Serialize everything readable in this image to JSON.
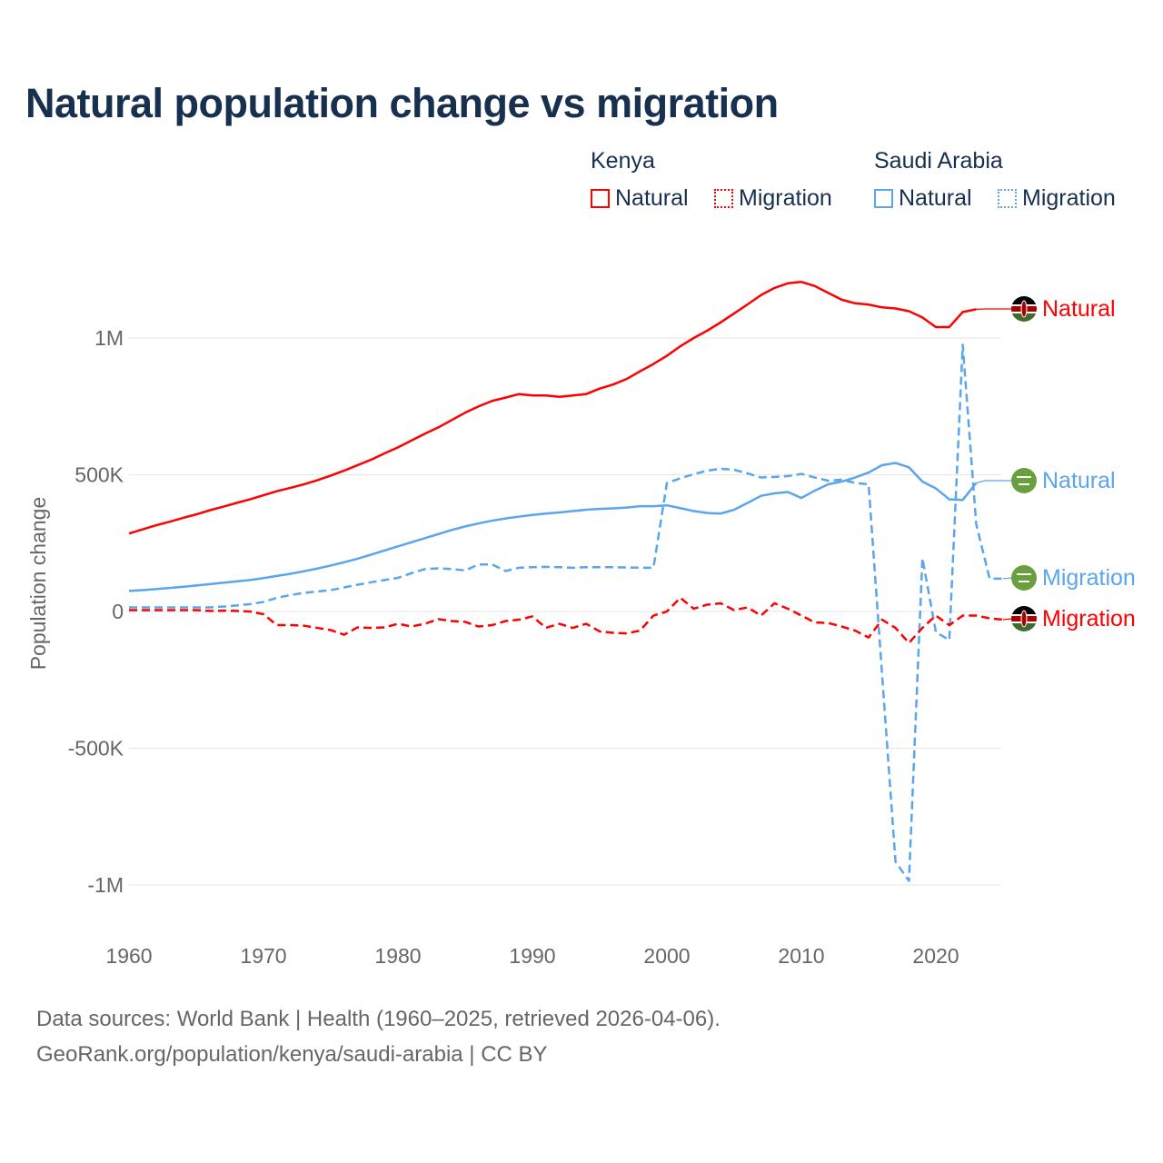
{
  "title": "Natural population change vs migration",
  "legend": {
    "groups": [
      {
        "name": "Kenya",
        "items": [
          {
            "label": "Natural",
            "style": "solid",
            "color": "#ff0000"
          },
          {
            "label": "Migration",
            "style": "dotted",
            "color": "#ff0000"
          }
        ]
      },
      {
        "name": "Saudi Arabia",
        "items": [
          {
            "label": "Natural",
            "style": "solid",
            "color": "#5aa5ec"
          },
          {
            "label": "Migration",
            "style": "dotted",
            "color": "#5aa5ec"
          }
        ]
      }
    ]
  },
  "footer": {
    "line1": "Data sources: World Bank | Health (1960–2025, retrieved 2026-04-06).",
    "line2": "GeoRank.org/population/kenya/saudi-arabia | CC BY"
  },
  "chart_data": {
    "type": "line",
    "title": "Natural population change vs migration",
    "xlabel": "",
    "ylabel": "Population change",
    "xlim": [
      1960,
      2025
    ],
    "ylim": [
      -1100000,
      1300000
    ],
    "x_ticks": [
      1960,
      1970,
      1980,
      1990,
      2000,
      2010,
      2020
    ],
    "y_ticks": [
      {
        "value": -1000000,
        "label": "-1M"
      },
      {
        "value": -500000,
        "label": "-500K"
      },
      {
        "value": 0,
        "label": "0"
      },
      {
        "value": 500000,
        "label": "500K"
      },
      {
        "value": 1000000,
        "label": "1M"
      }
    ],
    "start_year": 1960,
    "series": [
      {
        "name": "Kenya Natural",
        "label": "Natural",
        "color": "#ff0000",
        "dashed": false,
        "flag": "kenya",
        "values_k": [
          285,
          300,
          315,
          328,
          342,
          355,
          370,
          383,
          397,
          410,
          425,
          440,
          452,
          465,
          480,
          497,
          515,
          535,
          555,
          578,
          600,
          625,
          650,
          673,
          700,
          727,
          750,
          770,
          782,
          795,
          790,
          790,
          785,
          790,
          795,
          815,
          830,
          850,
          878,
          905,
          935,
          970,
          1000,
          1027,
          1057,
          1090,
          1123,
          1157,
          1183,
          1200,
          1205,
          1190,
          1165,
          1140,
          1127,
          1122,
          1112,
          1108,
          1098,
          1075,
          1040,
          1040,
          1095,
          1105
        ]
      },
      {
        "name": "Saudi Arabia Natural",
        "label": "Natural",
        "color": "#5aa5ec",
        "dashed": false,
        "flag": "saudi",
        "values_k": [
          75,
          78,
          82,
          86,
          90,
          95,
          100,
          105,
          110,
          115,
          122,
          130,
          138,
          147,
          157,
          168,
          180,
          193,
          208,
          223,
          238,
          253,
          268,
          283,
          298,
          311,
          322,
          332,
          340,
          347,
          353,
          358,
          362,
          367,
          372,
          375,
          377,
          380,
          385,
          385,
          388,
          378,
          367,
          360,
          358,
          372,
          397,
          423,
          432,
          437,
          415,
          442,
          465,
          475,
          490,
          508,
          535,
          543,
          527,
          475,
          450,
          410,
          408,
          470
        ]
      },
      {
        "name": "Saudi Arabia Migration",
        "label": "Migration",
        "color": "#5aa5ec",
        "dashed": true,
        "flag": "saudi",
        "values_k": [
          15,
          15,
          15,
          15,
          15,
          15,
          15,
          18,
          22,
          27,
          35,
          50,
          60,
          68,
          73,
          78,
          88,
          98,
          107,
          115,
          123,
          140,
          155,
          158,
          155,
          150,
          172,
          172,
          148,
          160,
          162,
          163,
          162,
          160,
          162,
          162,
          162,
          161,
          160,
          160,
          470,
          487,
          502,
          515,
          522,
          518,
          505,
          490,
          492,
          495,
          503,
          490,
          478,
          482,
          470,
          465,
          -230,
          -915,
          -985,
          195,
          -75,
          -105,
          975,
          320,
          120,
          120
        ]
      },
      {
        "name": "Kenya Migration",
        "label": "Migration",
        "color": "#ff0000",
        "dashed": true,
        "flag": "kenya",
        "values_k": [
          5,
          5,
          5,
          5,
          5,
          5,
          2,
          3,
          2,
          0,
          -10,
          -50,
          -50,
          -52,
          -60,
          -68,
          -85,
          -58,
          -60,
          -58,
          -45,
          -55,
          -45,
          -28,
          -35,
          -38,
          -55,
          -50,
          -35,
          -30,
          -18,
          -60,
          -45,
          -60,
          -45,
          -73,
          -78,
          -80,
          -70,
          -15,
          0,
          50,
          10,
          25,
          30,
          5,
          15,
          -15,
          30,
          10,
          -15,
          -40,
          -42,
          -55,
          -70,
          -95,
          -30,
          -60,
          -115,
          -60,
          -15,
          -50,
          -15,
          -15,
          -25,
          -30
        ]
      }
    ]
  }
}
